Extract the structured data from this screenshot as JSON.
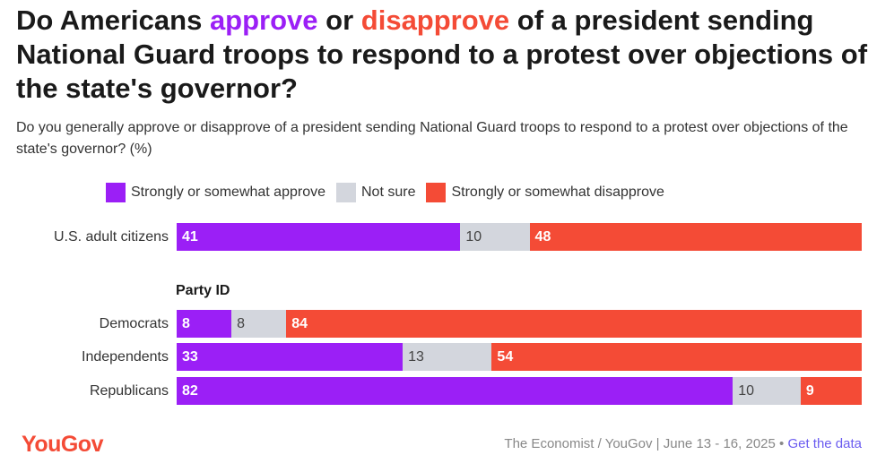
{
  "title": {
    "part1": "Do Americans ",
    "approve_word": "approve",
    "part2": " or ",
    "disapprove_word": "disapprove",
    "part3": " of a president sending National Guard troops to respond to a protest over objections of the state's governor?"
  },
  "subtitle": "Do you generally approve or disapprove of a president sending National Guard troops to respond to a protest over objections of the state's governor? (%)",
  "colors": {
    "approve": "#9b1ff6",
    "not_sure": "#d3d6dd",
    "disapprove": "#f44b36",
    "brand": "#f44b36",
    "link": "#6b5cf0"
  },
  "group_label": "Party ID",
  "chart_data": {
    "type": "bar",
    "orientation": "horizontal",
    "stacked": true,
    "unit": "%",
    "categories": [
      "U.S. adult citizens",
      "Democrats",
      "Independents",
      "Republicans"
    ],
    "series": [
      {
        "name": "Strongly or somewhat approve",
        "values": [
          41,
          8,
          33,
          82
        ]
      },
      {
        "name": "Not sure",
        "values": [
          10,
          8,
          13,
          10
        ]
      },
      {
        "name": "Strongly or somewhat disapprove",
        "values": [
          48,
          84,
          54,
          9
        ]
      }
    ],
    "legend_position": "top",
    "grid": false
  },
  "footer": {
    "logo": "YouGov",
    "source": "The Economist / YouGov | June 13 - 16, 2025 •",
    "link": "Get the data"
  }
}
